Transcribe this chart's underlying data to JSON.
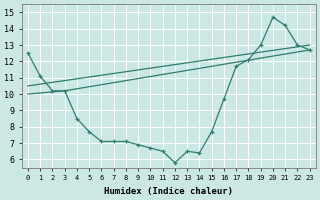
{
  "xlabel": "Humidex (Indice chaleur)",
  "xlim": [
    -0.5,
    23.5
  ],
  "ylim": [
    5.5,
    15.5
  ],
  "yticks": [
    6,
    7,
    8,
    9,
    10,
    11,
    12,
    13,
    14,
    15
  ],
  "xticks": [
    0,
    1,
    2,
    3,
    4,
    5,
    6,
    7,
    8,
    9,
    10,
    11,
    12,
    13,
    14,
    15,
    16,
    17,
    18,
    19,
    20,
    21,
    22,
    23
  ],
  "bg_color": "#cce8e4",
  "line_color": "#2e7d6e",
  "line1_x": [
    0,
    1,
    2,
    3,
    4,
    5,
    6,
    7,
    8,
    9,
    10,
    11,
    12,
    13,
    14,
    15,
    16,
    17,
    18,
    19,
    20,
    21,
    22,
    23
  ],
  "line1_y": [
    12.5,
    11.1,
    10.2,
    10.2,
    8.5,
    7.7,
    7.1,
    7.1,
    7.1,
    6.9,
    6.7,
    6.5,
    5.8,
    6.5,
    6.4,
    7.7,
    9.7,
    11.7,
    12.1,
    13.0,
    14.7,
    14.2,
    13.0,
    12.7
  ],
  "line2_x": [
    0,
    3,
    23
  ],
  "line2_y": [
    10.0,
    10.2,
    12.7
  ],
  "line3_x": [
    0,
    23
  ],
  "line3_y": [
    10.5,
    13.0
  ]
}
